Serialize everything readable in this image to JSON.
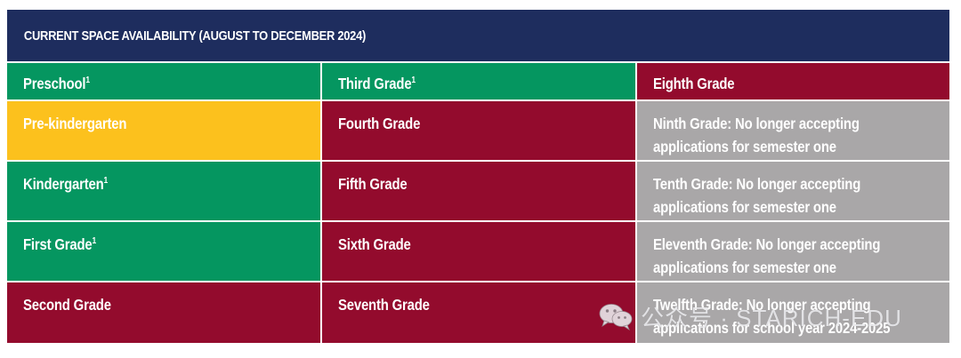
{
  "header": {
    "title": "CURRENT SPACE AVAILABILITY (AUGUST TO DECEMBER 2024)"
  },
  "colors": {
    "header": "#1e2d5e",
    "green": "#059660",
    "red": "#930b2d",
    "yellow": "#fcc11d",
    "gray": "#a9a7a8",
    "text": "#ffffff"
  },
  "rows": [
    [
      {
        "label": "Preschool",
        "sup": "1",
        "color": "green"
      },
      {
        "label": "Third Grade",
        "sup": "1",
        "color": "green"
      },
      {
        "label": "Eighth Grade",
        "sup": "",
        "color": "red"
      }
    ],
    [
      {
        "label": "Pre-kindergarten",
        "sup": "",
        "color": "yellow"
      },
      {
        "label": "Fourth Grade",
        "sup": "",
        "color": "red"
      },
      {
        "label": "Ninth Grade: No longer accepting applications for semester one",
        "sup": "",
        "color": "gray"
      }
    ],
    [
      {
        "label": "Kindergarten",
        "sup": "1",
        "color": "green"
      },
      {
        "label": "Fifth Grade",
        "sup": "",
        "color": "red"
      },
      {
        "label": "Tenth Grade: No longer accepting applications for semester one",
        "sup": "",
        "color": "gray"
      }
    ],
    [
      {
        "label": "First Grade",
        "sup": "1",
        "color": "green"
      },
      {
        "label": "Sixth Grade",
        "sup": "",
        "color": "red"
      },
      {
        "label": "Eleventh Grade: No longer accepting applications for semester one",
        "sup": "",
        "color": "gray"
      }
    ],
    [
      {
        "label": "Second Grade",
        "sup": "",
        "color": "red"
      },
      {
        "label": "Seventh Grade",
        "sup": "",
        "color": "red"
      },
      {
        "label": "Twelfth Grade: No longer accepting applications for school year 2024-2025",
        "sup": "",
        "color": "gray"
      }
    ]
  ],
  "watermark": {
    "text": "公众号 · STARICH-EDU",
    "icon": "wechat-icon"
  }
}
